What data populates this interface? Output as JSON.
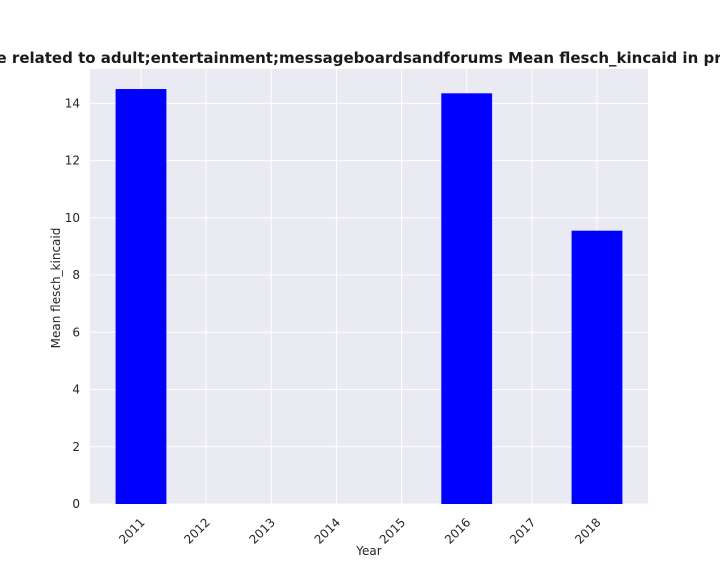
{
  "colors": {
    "plot_background": "#eaeaf2",
    "grid": "#ffffff",
    "bar": "#0000ff"
  },
  "chart_data": {
    "type": "bar",
    "title": "Mean of websites are related to adult;entertainment;messageboardsandforums Mean flesch_kincaid in privacy policies",
    "title_visible": "es are related to adult;entertainment;messageboardsandforums Mean flesch_kincaid in privacy",
    "xlabel": "Year",
    "ylabel": "Mean flesch_kincaid",
    "categories": [
      "2011",
      "2012",
      "2013",
      "2014",
      "2015",
      "2016",
      "2017",
      "2018"
    ],
    "values": [
      14.5,
      0,
      0,
      0,
      0,
      14.35,
      0,
      9.55
    ],
    "ylim": [
      0,
      15.2
    ],
    "yticks": [
      0,
      2,
      4,
      6,
      8,
      10,
      12,
      14
    ],
    "grid": true
  }
}
